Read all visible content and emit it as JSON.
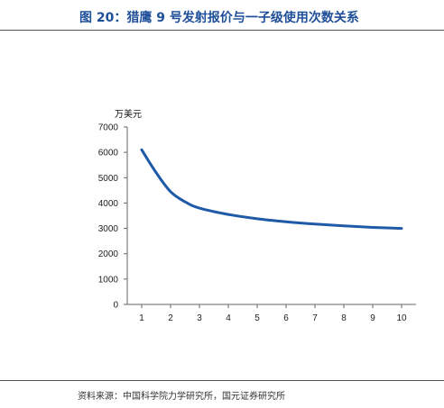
{
  "header": {
    "title": "图 20：猎鹰 9 号发射报价与一子级使用次数关系"
  },
  "footer": {
    "source": "资料来源：中国科学院力学研究所，国元证券研究所"
  },
  "chart_data": {
    "type": "line",
    "title": "",
    "unit_label": "万美元",
    "xlabel": "",
    "ylabel": "",
    "x": [
      1,
      1.5,
      2,
      2.5,
      3,
      4,
      5,
      6,
      7,
      8,
      9,
      10
    ],
    "categories": [
      "1",
      "2",
      "3",
      "4",
      "5",
      "6",
      "7",
      "8",
      "9",
      "10"
    ],
    "series": [
      {
        "values": [
          6100,
          5200,
          4450,
          4050,
          3800,
          3550,
          3380,
          3260,
          3170,
          3100,
          3040,
          3000
        ]
      }
    ],
    "ylim": [
      0,
      7000
    ],
    "yticks": [
      0,
      1000,
      2000,
      3000,
      4000,
      5000,
      6000,
      7000
    ],
    "xlim": [
      1,
      10
    ],
    "line_color": "#1f5aa8",
    "grid": false,
    "legend": "none"
  }
}
